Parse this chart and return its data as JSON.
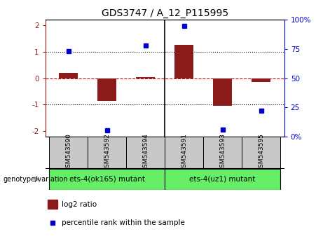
{
  "title": "GDS3747 / A_12_P115995",
  "samples": [
    "GSM543590",
    "GSM543592",
    "GSM543594",
    "GSM543591",
    "GSM543593",
    "GSM543595"
  ],
  "log2_ratio": [
    0.2,
    -0.85,
    0.05,
    1.25,
    -1.05,
    -0.15
  ],
  "percentile_rank": [
    73,
    5,
    78,
    95,
    6,
    22
  ],
  "group1_label": "ets-4(ok165) mutant",
  "group2_label": "ets-4(uz1) mutant",
  "bar_color": "#8B1A1A",
  "dot_color": "#0000CC",
  "ylim_left": [
    -2.2,
    2.2
  ],
  "ylim_right": [
    0,
    100
  ],
  "yticks_left": [
    -2,
    -1,
    0,
    1,
    2
  ],
  "yticks_right": [
    0,
    25,
    50,
    75,
    100
  ],
  "dotted_lines": [
    -1.0,
    0.0,
    1.0
  ],
  "group1_color": "#66EE66",
  "group2_color": "#66EE66",
  "tick_box_color": "#C8C8C8",
  "genotype_label": "genotype/variation",
  "legend_log2": "log2 ratio",
  "legend_pct": "percentile rank within the sample"
}
